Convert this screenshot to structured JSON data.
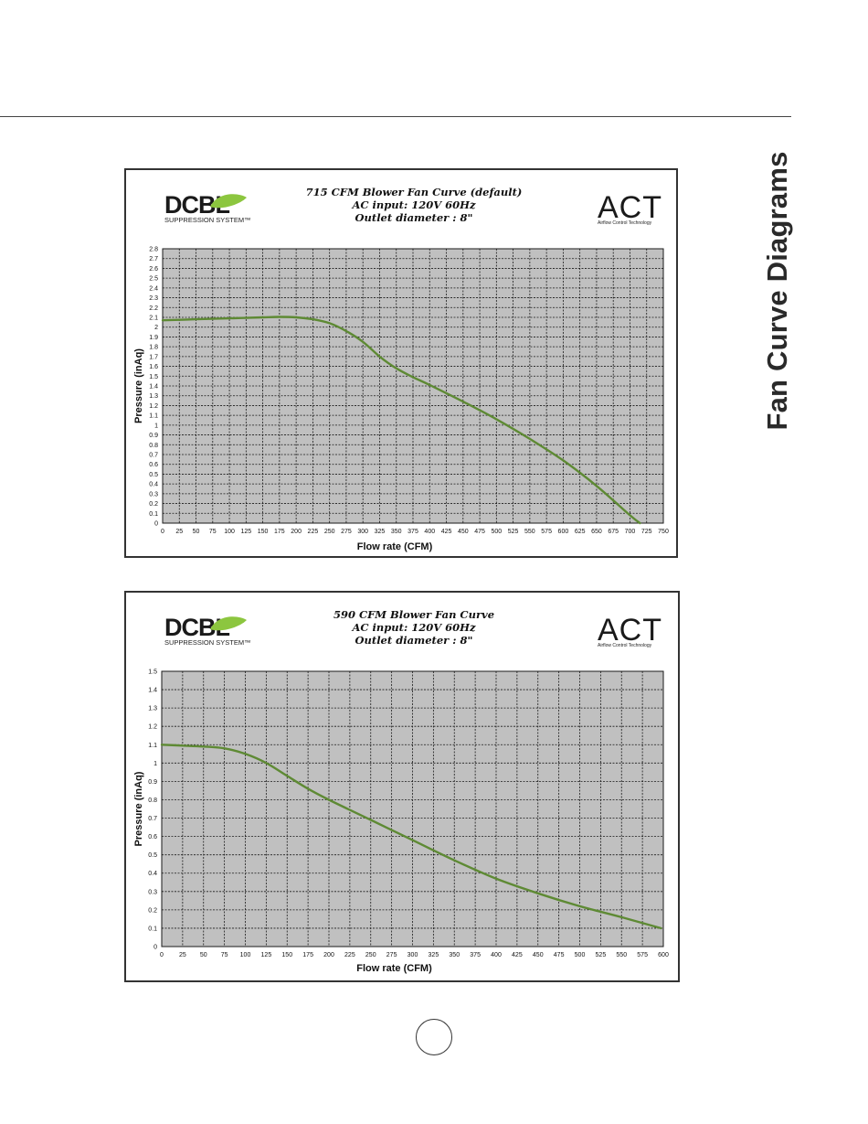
{
  "side_heading": "Fan Curve Diagrams",
  "logos": {
    "left_main": "DCBL",
    "left_sub": "SUPPRESSION SYSTEM™",
    "right_main": "ACT",
    "right_sub": "Airflow Control Technology"
  },
  "colors": {
    "curve": "#5e8a34",
    "plot_bg": "#c0c0c0",
    "leaf": "#8cc63f"
  },
  "chart_data": [
    {
      "type": "line",
      "title_lines": [
        "715 CFM Blower Fan Curve (default)",
        "AC input: 120V  60Hz",
        "Outlet diameter : 8\""
      ],
      "xlabel": "Flow rate (CFM)",
      "ylabel": "Pressure (inAq)",
      "xlim": [
        0,
        750
      ],
      "ylim": [
        0,
        2.8
      ],
      "x_ticks": [
        0,
        25,
        50,
        75,
        100,
        125,
        150,
        175,
        200,
        225,
        250,
        275,
        300,
        325,
        350,
        375,
        400,
        425,
        450,
        475,
        500,
        525,
        550,
        575,
        600,
        625,
        650,
        675,
        700,
        725,
        750
      ],
      "y_ticks": [
        "0",
        "0.1",
        "0.2",
        "0.3",
        "0.4",
        "0.5",
        "0.6",
        "0.7",
        "0.8",
        "0.9",
        "1",
        "1.1",
        "1.2",
        "1.3",
        "1.4",
        "1.5",
        "1.6",
        "1.7",
        "1.8",
        "1.9",
        "2",
        "2.1",
        "2.2",
        "2.3",
        "2.4",
        "2.5",
        "2.6",
        "2.7",
        "2.8"
      ],
      "y_tick_values": [
        0,
        0.1,
        0.2,
        0.3,
        0.4,
        0.5,
        0.6,
        0.7,
        0.8,
        0.9,
        1,
        1.1,
        1.2,
        1.3,
        1.4,
        1.5,
        1.6,
        1.7,
        1.8,
        1.9,
        2,
        2.1,
        2.2,
        2.3,
        2.4,
        2.5,
        2.6,
        2.7,
        2.8
      ],
      "grid": true,
      "series": [
        {
          "x": [
            0,
            50,
            100,
            150,
            175,
            200,
            225,
            250,
            275,
            300,
            325,
            350,
            375,
            400,
            450,
            500,
            550,
            600,
            650,
            700,
            715
          ],
          "y": [
            2.07,
            2.08,
            2.09,
            2.1,
            2.105,
            2.1,
            2.08,
            2.04,
            1.96,
            1.85,
            1.7,
            1.58,
            1.49,
            1.41,
            1.24,
            1.06,
            0.86,
            0.64,
            0.38,
            0.08,
            0.0
          ]
        }
      ]
    },
    {
      "type": "line",
      "title_lines": [
        "590 CFM Blower Fan Curve",
        "AC input: 120V  60Hz",
        "Outlet diameter : 8\""
      ],
      "xlabel": "Flow rate (CFM)",
      "ylabel": "Pressure (inAq)",
      "xlim": [
        0,
        600
      ],
      "ylim": [
        0,
        1.5
      ],
      "x_ticks": [
        0,
        25,
        50,
        75,
        100,
        125,
        150,
        175,
        200,
        225,
        250,
        275,
        300,
        325,
        350,
        375,
        400,
        425,
        450,
        475,
        500,
        525,
        550,
        575,
        600
      ],
      "y_ticks": [
        "0",
        "0.1",
        "0.2",
        "0.3",
        "0.4",
        "0.5",
        "0.6",
        "0.7",
        "0.8",
        "0.9",
        "1",
        "1.1",
        "1.2",
        "1.3",
        "1.4",
        "1.5"
      ],
      "y_tick_values": [
        0,
        0.1,
        0.2,
        0.3,
        0.4,
        0.5,
        0.6,
        0.7,
        0.8,
        0.9,
        1,
        1.1,
        1.2,
        1.3,
        1.4,
        1.5
      ],
      "grid": true,
      "series": [
        {
          "x": [
            0,
            25,
            50,
            75,
            100,
            125,
            150,
            175,
            200,
            250,
            300,
            350,
            400,
            450,
            500,
            550,
            597
          ],
          "y": [
            1.1,
            1.095,
            1.09,
            1.08,
            1.05,
            1.0,
            0.93,
            0.86,
            0.8,
            0.69,
            0.58,
            0.47,
            0.37,
            0.29,
            0.22,
            0.16,
            0.1
          ]
        }
      ]
    }
  ]
}
